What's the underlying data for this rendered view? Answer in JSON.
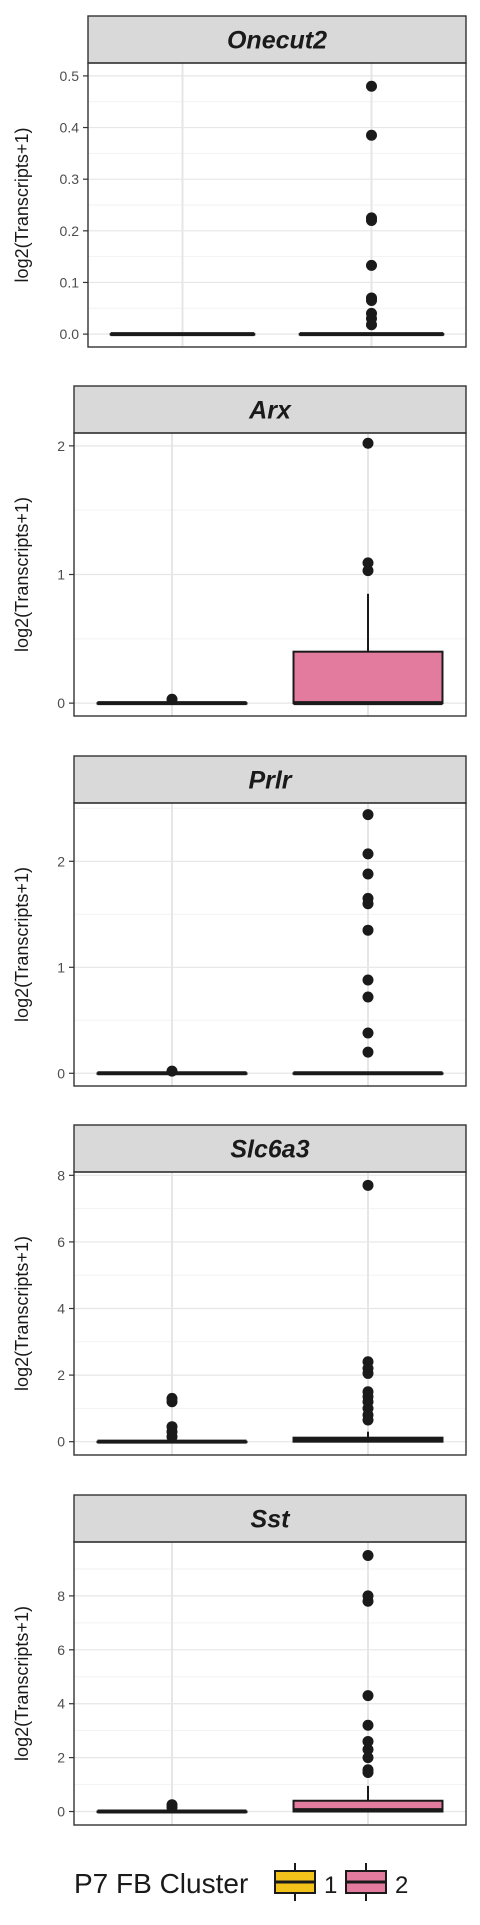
{
  "chart_data": [
    {
      "type": "box",
      "title": "Onecut2",
      "ylabel": "log2(Transcripts+1)",
      "ylim": [
        -0.025,
        0.525
      ],
      "yticks": [
        0.0,
        0.1,
        0.2,
        0.3,
        0.4,
        0.5
      ],
      "ytick_labels": [
        "0.0",
        "0.1",
        "0.2",
        "0.3",
        "0.4",
        "0.5"
      ],
      "boxes": [
        {
          "cluster": "1",
          "q1": 0,
          "median": 0,
          "q3": 0,
          "whisker_low": 0,
          "whisker_high": 0,
          "outliers": []
        },
        {
          "cluster": "2",
          "q1": 0,
          "median": 0,
          "q3": 0,
          "whisker_low": 0,
          "whisker_high": 0,
          "outliers": [
            0.48,
            0.385,
            0.225,
            0.22,
            0.133,
            0.07,
            0.065,
            0.04,
            0.03,
            0.018
          ]
        }
      ]
    },
    {
      "type": "box",
      "title": "Arx",
      "ylabel": "log2(Transcripts+1)",
      "ylim": [
        -0.1,
        2.1
      ],
      "yticks": [
        0,
        1,
        2
      ],
      "ytick_labels": [
        "0",
        "1",
        "2"
      ],
      "boxes": [
        {
          "cluster": "1",
          "q1": 0,
          "median": 0,
          "q3": 0,
          "whisker_low": 0,
          "whisker_high": 0,
          "outliers": [
            0.03
          ]
        },
        {
          "cluster": "2",
          "q1": 0,
          "median": 0,
          "q3": 0.4,
          "whisker_low": 0,
          "whisker_high": 0.85,
          "outliers": [
            2.02,
            1.09,
            1.03
          ]
        }
      ]
    },
    {
      "type": "box",
      "title": "Prlr",
      "ylabel": "log2(Transcripts+1)",
      "ylim": [
        -0.12,
        2.55
      ],
      "yticks": [
        0,
        1,
        2
      ],
      "ytick_labels": [
        "0",
        "1",
        "2"
      ],
      "boxes": [
        {
          "cluster": "1",
          "q1": 0,
          "median": 0,
          "q3": 0,
          "whisker_low": 0,
          "whisker_high": 0,
          "outliers": [
            0.02
          ]
        },
        {
          "cluster": "2",
          "q1": 0,
          "median": 0,
          "q3": 0,
          "whisker_low": 0,
          "whisker_high": 0,
          "outliers": [
            2.44,
            2.07,
            1.88,
            1.65,
            1.6,
            1.35,
            0.88,
            0.72,
            0.38,
            0.2
          ]
        }
      ]
    },
    {
      "type": "box",
      "title": "Slc6a3",
      "ylabel": "log2(Transcripts+1)",
      "ylim": [
        -0.4,
        8.1
      ],
      "yticks": [
        0,
        2,
        4,
        6,
        8
      ],
      "ytick_labels": [
        "0",
        "2",
        "4",
        "6",
        "8"
      ],
      "boxes": [
        {
          "cluster": "1",
          "q1": 0,
          "median": 0,
          "q3": 0,
          "whisker_low": 0,
          "whisker_high": 0,
          "outliers": [
            1.3,
            1.2,
            0.45,
            0.3,
            0.15
          ]
        },
        {
          "cluster": "2",
          "q1": 0,
          "median": 0.05,
          "q3": 0.12,
          "whisker_low": 0,
          "whisker_high": 0.3,
          "outliers": [
            7.7,
            2.4,
            2.2,
            2.05,
            1.5,
            1.35,
            1.2,
            1.0,
            0.8,
            0.65
          ]
        }
      ]
    },
    {
      "type": "box",
      "title": "Sst",
      "ylabel": "log2(Transcripts+1)",
      "ylim": [
        -0.5,
        10.0
      ],
      "yticks": [
        0,
        2,
        4,
        6,
        8
      ],
      "ytick_labels": [
        "0",
        "2",
        "4",
        "6",
        "8"
      ],
      "boxes": [
        {
          "cluster": "1",
          "q1": 0,
          "median": 0,
          "q3": 0,
          "whisker_low": 0,
          "whisker_high": 0,
          "outliers": [
            0.25,
            0.15
          ]
        },
        {
          "cluster": "2",
          "q1": 0,
          "median": 0.05,
          "q3": 0.4,
          "whisker_low": 0,
          "whisker_high": 0.95,
          "outliers": [
            9.5,
            8.0,
            7.8,
            4.3,
            3.2,
            2.6,
            2.3,
            2.0,
            1.55,
            1.45
          ]
        }
      ]
    }
  ],
  "legend": {
    "title": "P7 FB Cluster",
    "items": [
      {
        "label": "1",
        "color": "#F2C21B"
      },
      {
        "label": "2",
        "color": "#E27B9E"
      }
    ]
  }
}
